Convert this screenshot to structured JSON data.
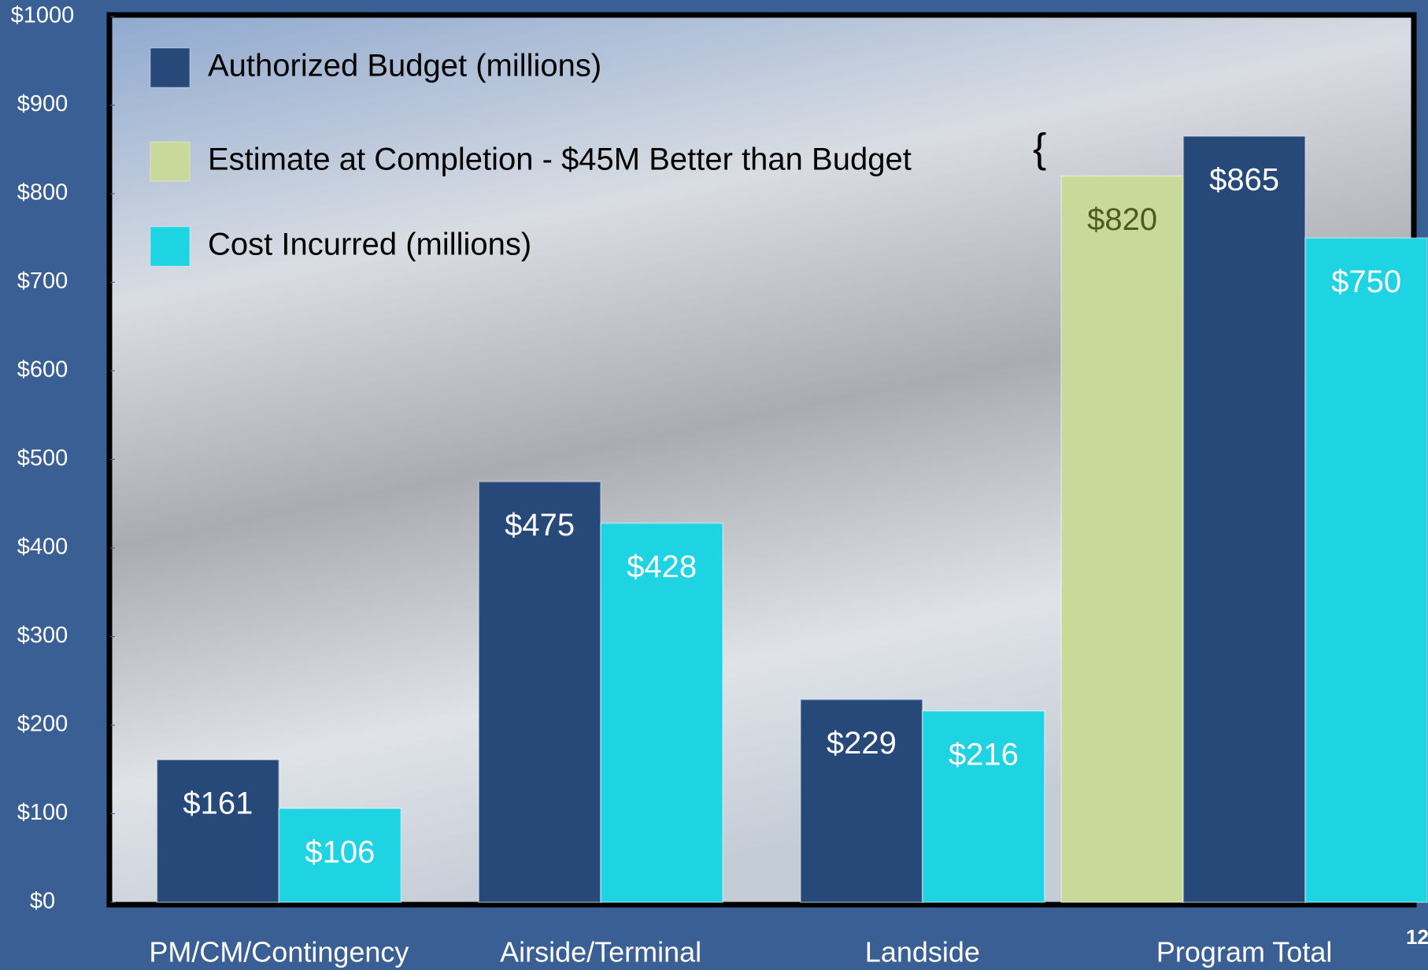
{
  "chart_data": {
    "type": "bar",
    "categories": [
      "PM/CM/Contingency",
      "Airside/Terminal",
      "Landside",
      "Program Total"
    ],
    "series": [
      {
        "name": "Authorized Budget (millions)",
        "color": "#27497a",
        "values": [
          161,
          475,
          229,
          865
        ],
        "value_labels": [
          "$161",
          "$475",
          "$229",
          "$865"
        ]
      },
      {
        "name": "Estimate at Completion - $45M Better than Budget",
        "color": "#c8d99a",
        "values": [
          null,
          null,
          null,
          820
        ],
        "value_labels": [
          null,
          null,
          null,
          "$820"
        ]
      },
      {
        "name": "Cost Incurred (millions)",
        "color": "#1ed3e2",
        "values": [
          106,
          428,
          216,
          750
        ],
        "value_labels": [
          "$106",
          "$428",
          "$216",
          "$750"
        ]
      }
    ],
    "ylim": [
      0,
      1000
    ],
    "yticks": [
      {
        "value": 0,
        "label": "$0"
      },
      {
        "value": 100,
        "label": "$100"
      },
      {
        "value": 200,
        "label": "$200"
      },
      {
        "value": 300,
        "label": "$300"
      },
      {
        "value": 400,
        "label": "$400"
      },
      {
        "value": 500,
        "label": "$500"
      },
      {
        "value": 600,
        "label": "$600"
      },
      {
        "value": 700,
        "label": "$700"
      },
      {
        "value": 800,
        "label": "$800"
      },
      {
        "value": 900,
        "label": "$900"
      },
      {
        "value": 1000,
        "label": "$1000"
      }
    ],
    "grid": false,
    "legend": "upper left",
    "annotation": "{",
    "page_number": "12"
  }
}
